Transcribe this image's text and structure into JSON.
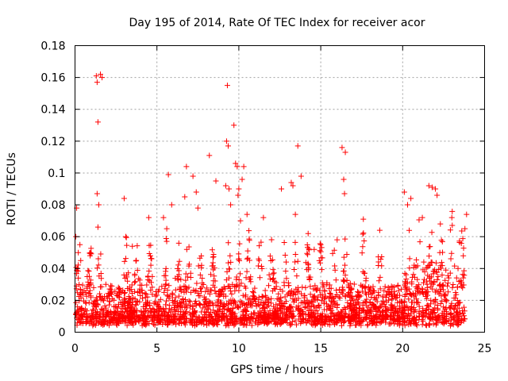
{
  "chart_data": {
    "type": "scatter",
    "title": "Day 195 of 2014, Rate Of TEC Index for receiver acor",
    "xlabel": "GPS time / hours",
    "ylabel": "ROTI / TECUs",
    "xlim": [
      0,
      25
    ],
    "ylim": [
      0,
      0.18
    ],
    "xticks": [
      0,
      5,
      10,
      15,
      20,
      25
    ],
    "xtick_labels": [
      "0",
      "5",
      "10",
      "15",
      "20",
      "25"
    ],
    "yticks": [
      0,
      0.02,
      0.04,
      0.06,
      0.08,
      0.1,
      0.12,
      0.14,
      0.16,
      0.18
    ],
    "ytick_labels": [
      "0",
      "0.02",
      "0.04",
      "0.06",
      "0.08",
      "0.1",
      "0.12",
      "0.14",
      "0.16",
      "0.18"
    ],
    "grid": true,
    "marker": "+",
    "series": [
      {
        "name": "ROTI",
        "color": "#ff0000",
        "x": [
          0.05,
          0.1,
          0.15,
          0.2,
          0.25,
          0.3,
          0.35,
          1.3,
          1.35,
          1.35,
          1.4,
          1.55,
          1.65,
          1.45,
          1.4,
          3.0,
          3.1,
          3.5,
          4.5,
          4.6,
          5.4,
          5.6,
          5.7,
          5.9,
          6.7,
          6.8,
          7.2,
          7.4,
          7.5,
          8.2,
          8.6,
          9.2,
          9.25,
          9.3,
          9.35,
          9.4,
          9.5,
          9.7,
          9.8,
          9.9,
          9.95,
          10.0,
          10.1,
          10.2,
          10.3,
          10.5,
          11.5,
          12.6,
          13.2,
          13.3,
          13.45,
          13.6,
          13.8,
          14.6,
          15.0,
          16.0,
          16.3,
          16.4,
          16.45,
          16.5,
          17.6,
          18.6,
          20.1,
          20.3,
          20.5,
          21.2,
          21.6,
          21.8,
          22.0,
          22.1,
          22.3,
          23.0,
          23.8,
          23.9
        ],
        "y": [
          0.06,
          0.078,
          0.04,
          0.05,
          0.03,
          0.055,
          0.045,
          0.161,
          0.157,
          0.087,
          0.132,
          0.162,
          0.16,
          0.08,
          0.066,
          0.084,
          0.06,
          0.054,
          0.072,
          0.048,
          0.072,
          0.065,
          0.099,
          0.08,
          0.085,
          0.104,
          0.098,
          0.088,
          0.078,
          0.111,
          0.095,
          0.092,
          0.12,
          0.155,
          0.117,
          0.09,
          0.08,
          0.13,
          0.106,
          0.104,
          0.086,
          0.09,
          0.07,
          0.096,
          0.104,
          0.074,
          0.072,
          0.09,
          0.094,
          0.092,
          0.074,
          0.117,
          0.098,
          0.052,
          0.055,
          0.058,
          0.116,
          0.096,
          0.087,
          0.113,
          0.071,
          0.064,
          0.088,
          0.08,
          0.084,
          0.072,
          0.092,
          0.091,
          0.09,
          0.086,
          0.068,
          0.072,
          0.065,
          0.074
        ]
      }
    ]
  }
}
